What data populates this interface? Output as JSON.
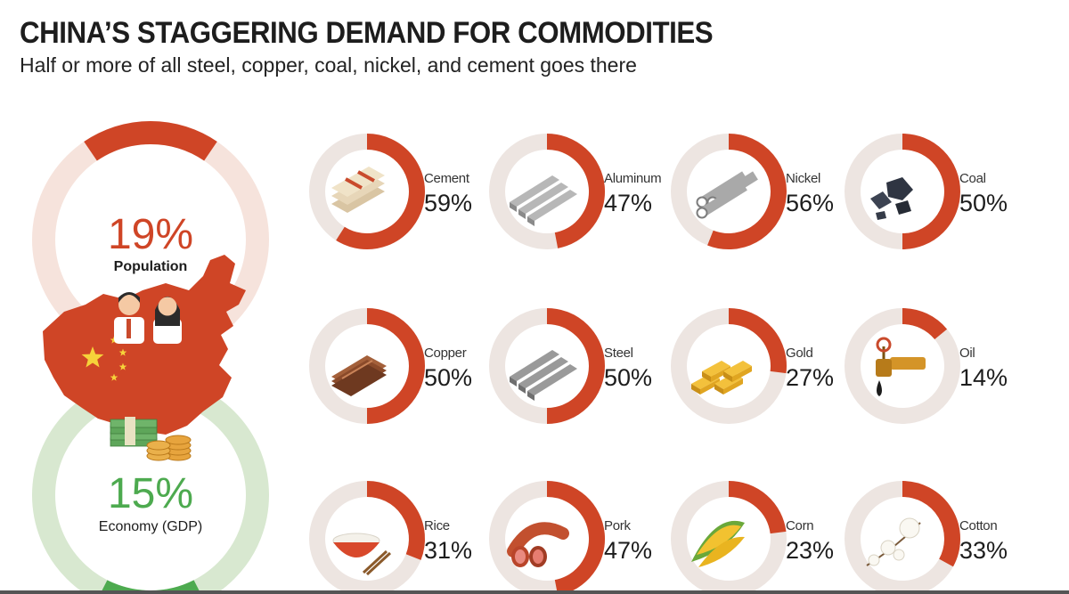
{
  "header": {
    "title": "CHINA’S STAGGERING DEMAND FOR COMMODITIES",
    "subtitle": "Half or more of all steel, copper, coal, nickel, and cement goes there"
  },
  "colors": {
    "accent_red": "#cf4526",
    "ring_gray": "#ede5e1",
    "pop_ring_bg": "#f6e3dc",
    "gdp_ring_bg": "#d8e8d0",
    "gdp_green": "#4daa4f",
    "text_dark": "#1d1d1d"
  },
  "chart_data": [
    {
      "type": "pie",
      "name": "overview",
      "items": [
        {
          "label": "Population",
          "value": 19,
          "display": "19%",
          "color": "#cf4526",
          "icon": "china-map-people-icon"
        },
        {
          "label": "Economy (GDP)",
          "value": 15,
          "display": "15%",
          "color": "#4daa4f",
          "icon": "money-stack-icon"
        }
      ]
    },
    {
      "type": "pie",
      "name": "commodities",
      "unit": "%",
      "items": [
        {
          "label": "Cement",
          "value": 59,
          "display": "59%",
          "icon": "cement-bags-icon"
        },
        {
          "label": "Aluminum",
          "value": 47,
          "display": "47%",
          "icon": "aluminum-bars-icon"
        },
        {
          "label": "Nickel",
          "value": 56,
          "display": "56%",
          "icon": "nickel-pipes-icon"
        },
        {
          "label": "Coal",
          "value": 50,
          "display": "50%",
          "icon": "coal-lumps-icon"
        },
        {
          "label": "Copper",
          "value": 50,
          "display": "50%",
          "icon": "copper-sheets-icon"
        },
        {
          "label": "Steel",
          "value": 50,
          "display": "50%",
          "icon": "steel-beams-icon"
        },
        {
          "label": "Gold",
          "value": 27,
          "display": "27%",
          "icon": "gold-bars-icon"
        },
        {
          "label": "Oil",
          "value": 14,
          "display": "14%",
          "icon": "oil-valve-icon"
        },
        {
          "label": "Rice",
          "value": 31,
          "display": "31%",
          "icon": "rice-bowl-icon"
        },
        {
          "label": "Pork",
          "value": 47,
          "display": "47%",
          "icon": "pork-sausage-icon"
        },
        {
          "label": "Corn",
          "value": 23,
          "display": "23%",
          "icon": "corn-cobs-icon"
        },
        {
          "label": "Cotton",
          "value": 33,
          "display": "33%",
          "icon": "cotton-branch-icon"
        }
      ]
    }
  ]
}
